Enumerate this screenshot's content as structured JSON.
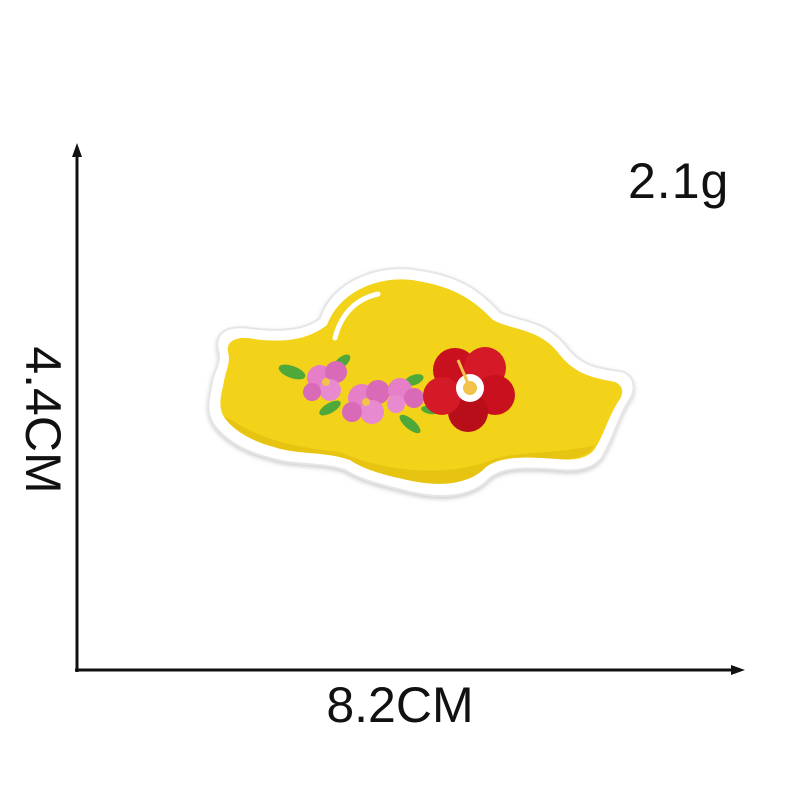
{
  "measurements": {
    "weight": "2.1g",
    "width": "8.2CM",
    "height": "4.4CM"
  },
  "product": {
    "name": "yellow-hat-embroidered-patch",
    "colors": {
      "hat": "#F3D21A",
      "border": "#FFFFFF",
      "flower_red": "#C8101E",
      "flower_pink": "#E67FC8",
      "leaf": "#4FA83A"
    }
  },
  "icons": [
    "arrow-up-icon",
    "arrow-right-icon"
  ]
}
